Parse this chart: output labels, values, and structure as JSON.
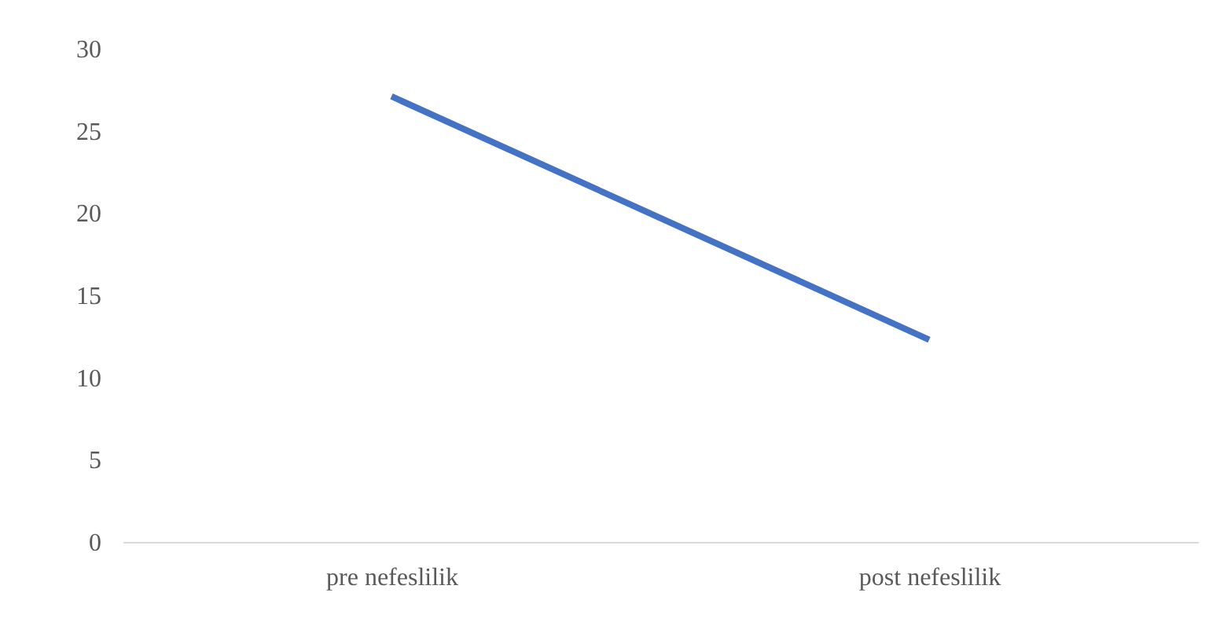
{
  "chart_data": {
    "type": "line",
    "categories": [
      "pre nefeslilik",
      "post nefeslilik"
    ],
    "series": [
      {
        "color": "#4472c4",
        "values": [
          27.1,
          12.3
        ]
      }
    ],
    "ylim": [
      0,
      30
    ],
    "yticks": [
      0,
      5,
      10,
      15,
      20,
      25,
      30
    ],
    "grid": false,
    "legend": false,
    "marker": "none"
  }
}
